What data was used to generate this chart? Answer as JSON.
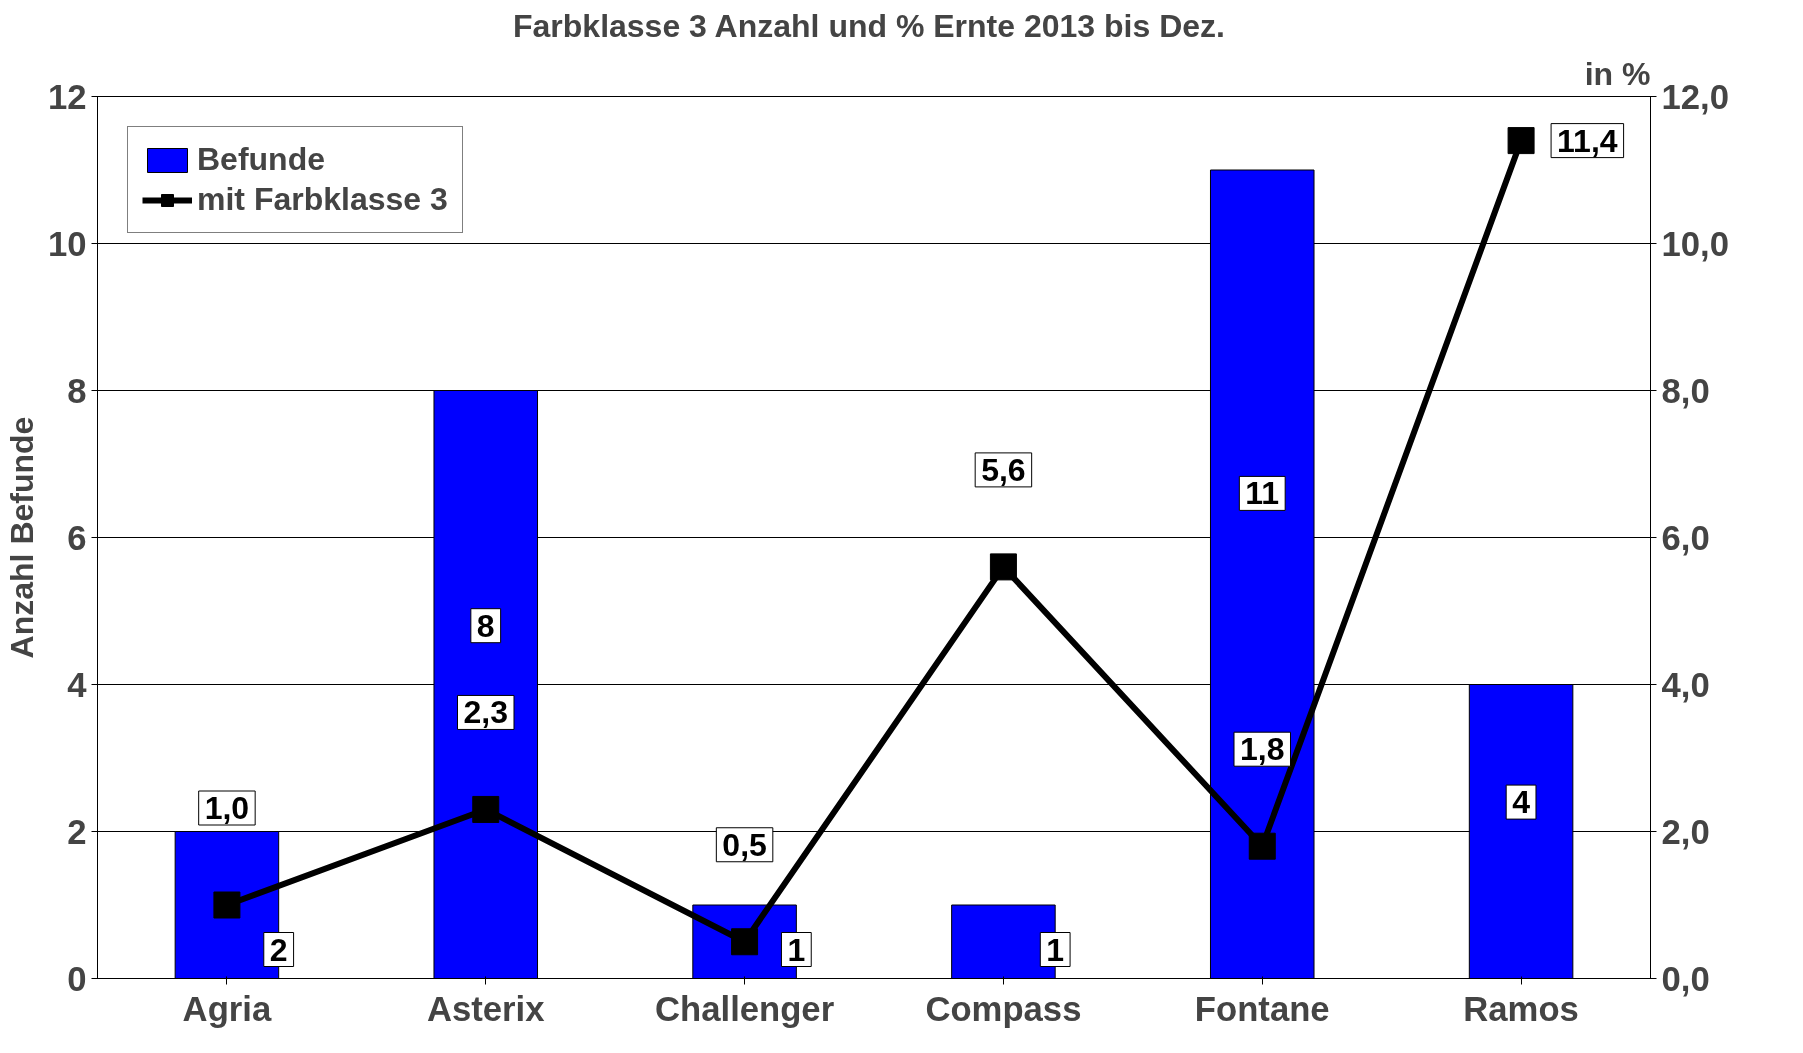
{
  "chart_data": {
    "type": "bar",
    "title": "Farbklasse 3 Anzahl und %  Ernte 2013 bis Dez.",
    "ylabel": "Anzahl Befunde",
    "y2label": "in %",
    "categories": [
      "Agria",
      "Asterix",
      "Challenger",
      "Compass",
      "Fontane",
      "Ramos"
    ],
    "series": [
      {
        "name": "Befunde",
        "type": "bar",
        "color": "#0000ff",
        "values": [
          2,
          8,
          1,
          1,
          11,
          4
        ],
        "value_labels": [
          "2",
          "8",
          "1",
          "1",
          "11",
          "4"
        ]
      },
      {
        "name": "mit Farbklasse 3",
        "type": "line",
        "axis": "y2",
        "color": "#000000",
        "marker": "square",
        "values": [
          1.0,
          2.3,
          0.5,
          5.6,
          1.8,
          11.4
        ],
        "value_labels": [
          "1,0",
          "2,3",
          "0,5",
          "5,6",
          "1,8",
          "11,4"
        ]
      }
    ],
    "ylim": [
      0,
      12
    ],
    "yticks": [
      0,
      2,
      4,
      6,
      8,
      10,
      12
    ],
    "y2lim": [
      0,
      12
    ],
    "y2ticks": [
      {
        "value": 0,
        "label": "0,0"
      },
      {
        "value": 2,
        "label": "2,0"
      },
      {
        "value": 4,
        "label": "4,0"
      },
      {
        "value": 6,
        "label": "6,0"
      },
      {
        "value": 8,
        "label": "8,0"
      },
      {
        "value": 10,
        "label": "10,0"
      },
      {
        "value": 12,
        "label": "12,0"
      }
    ],
    "grid": "y",
    "legend": "top left"
  }
}
